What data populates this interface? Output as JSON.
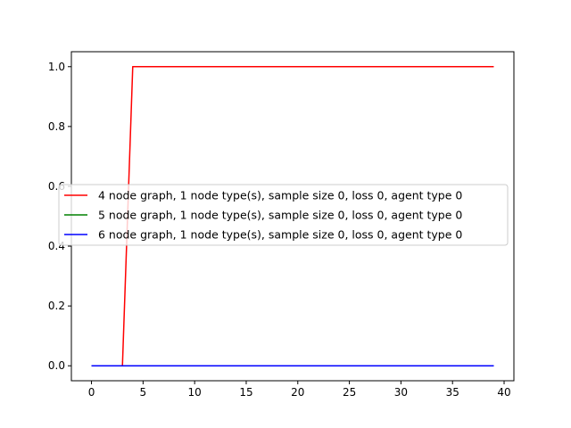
{
  "chart_data": {
    "type": "line",
    "title": "",
    "xlabel": "",
    "ylabel": "",
    "xlim": [
      -1.95,
      40.95
    ],
    "ylim": [
      -0.05,
      1.05
    ],
    "x_ticks": [
      0,
      5,
      10,
      15,
      20,
      25,
      30,
      35,
      40
    ],
    "y_ticks": [
      0.0,
      0.2,
      0.4,
      0.6,
      0.8,
      1.0
    ],
    "x_tick_labels": [
      "0",
      "5",
      "10",
      "15",
      "20",
      "25",
      "30",
      "35",
      "40"
    ],
    "y_tick_labels": [
      "0.0",
      "0.2",
      "0.4",
      "0.6",
      "0.8",
      "1.0"
    ],
    "grid": false,
    "legend_placement": "center-left",
    "series": [
      {
        "name": "4 node graph, 1 node type(s), sample size 0, loss 0, agent type 0",
        "color": "#ff0000",
        "x": [
          0,
          3,
          4,
          39
        ],
        "y": [
          0,
          0,
          1,
          1
        ]
      },
      {
        "name": "5 node graph, 1 node type(s), sample size 0, loss 0, agent type 0",
        "color": "#008000",
        "x": [
          0,
          39
        ],
        "y": [
          0,
          0
        ]
      },
      {
        "name": "6 node graph, 1 node type(s), sample size 0, loss 0, agent type 0",
        "color": "#0000ff",
        "x": [
          0,
          39
        ],
        "y": [
          0,
          0
        ]
      }
    ]
  }
}
